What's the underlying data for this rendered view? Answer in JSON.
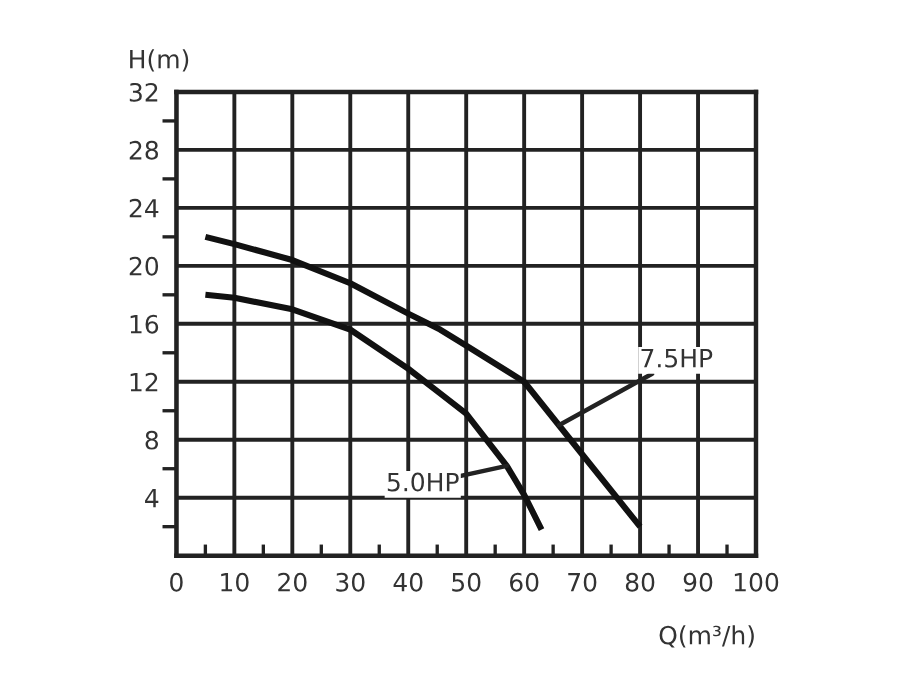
{
  "chart_data": {
    "type": "line",
    "xlabel": "Q(m³/h)",
    "ylabel": "H(m)",
    "series": [
      {
        "color": "#111111",
        "x": [
          5,
          10,
          20,
          30,
          40,
          45.5,
          50,
          60,
          66,
          70,
          75,
          80
        ],
        "values": [
          22,
          21.5,
          20.4,
          18.8,
          16.7,
          15.6,
          14.5,
          12,
          9,
          7,
          4.5,
          2
        ]
      },
      {
        "color": "#111111",
        "x": [
          5,
          10,
          20,
          30,
          40,
          45.5,
          50,
          57,
          60,
          63
        ],
        "values": [
          18,
          17.8,
          17,
          15.6,
          12.9,
          11.2,
          9.8,
          6.2,
          4.2,
          1.8
        ]
      }
    ],
    "annotations": [
      {
        "text": "7.5HP",
        "x": 66,
        "y": 9
      },
      {
        "text": "5.0HP",
        "x": 57,
        "y": 6.2
      }
    ],
    "xlim": [
      0,
      100
    ],
    "ylim": [
      0,
      32
    ],
    "xticks": [
      0,
      {
        "value": 5,
        "label": null
      },
      10,
      {
        "value": 15,
        "label": null
      },
      20,
      {
        "value": 25,
        "label": null
      },
      30,
      {
        "value": 35,
        "label": null
      },
      40,
      {
        "value": 45,
        "label": null
      },
      50,
      {
        "value": 55,
        "label": null
      },
      60,
      {
        "value": 65,
        "label": null
      },
      70,
      {
        "value": 75,
        "label": null
      },
      80,
      {
        "value": 85,
        "label": null
      },
      90,
      {
        "value": 95,
        "label": null
      },
      100
    ],
    "yticks": [
      {
        "value": 2,
        "label": null
      },
      4,
      {
        "value": 6,
        "label": null
      },
      8,
      {
        "value": 10,
        "label": null
      },
      12,
      {
        "value": 14,
        "label": null
      },
      16,
      {
        "value": 18,
        "label": null
      },
      20,
      {
        "value": 22,
        "label": null
      },
      24,
      {
        "value": 26,
        "label": null
      },
      28,
      {
        "value": 30,
        "label": null
      },
      32
    ],
    "grid": true,
    "legend": false,
    "marker": "none",
    "line_style": "solid"
  }
}
